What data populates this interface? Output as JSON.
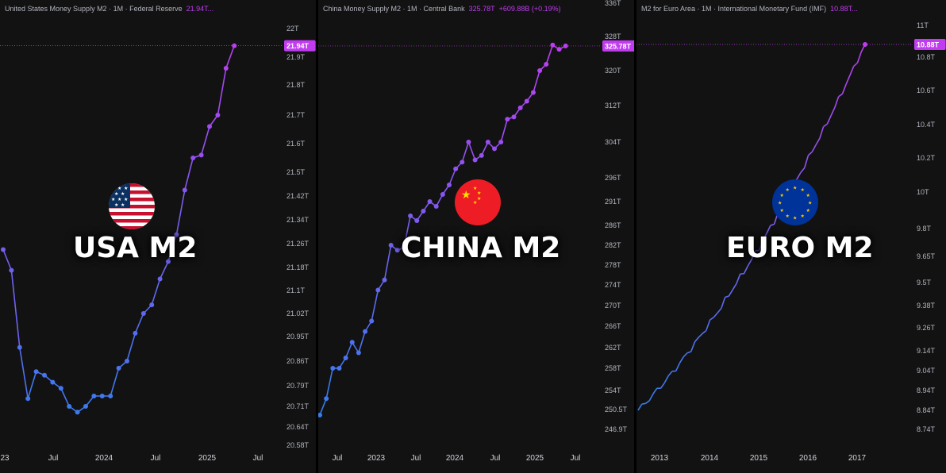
{
  "chart_data": [
    {
      "type": "line",
      "header_title": "United States Money Supply M2 · 1M · Federal Reserve",
      "header_value": "21.94T...",
      "overlay_title": "USA M2",
      "last_label": "21.94T",
      "y_ticks": [
        "22T",
        "21.9T",
        "21.8T",
        "21.7T",
        "21.6T",
        "21.5T",
        "21.42T",
        "21.34T",
        "21.26T",
        "21.18T",
        "21.1T",
        "21.02T",
        "20.95T",
        "20.86T",
        "20.79T",
        "20.71T",
        "20.64T",
        "20.58T"
      ],
      "x_ticks": [
        "23",
        "Jul",
        "2024",
        "Jul",
        "2025",
        "Jul"
      ],
      "ylim": [
        20.56,
        22.02
      ],
      "series": [
        {
          "values": [
            21.24,
            21.17,
            20.91,
            20.74,
            20.83,
            20.82,
            20.8,
            20.78,
            20.71,
            20.69,
            20.71,
            20.75,
            20.75,
            20.75,
            20.84,
            20.86,
            20.96,
            21.02,
            21.05,
            21.14,
            21.2,
            21.29,
            21.44,
            21.55,
            21.56,
            21.66,
            21.7,
            21.86,
            21.94
          ],
          "lead_in": 21.24
        }
      ],
      "accent": "#c13cf0"
    },
    {
      "type": "line",
      "header_title": "China Money Supply M2 · 1M · Central Bank",
      "header_value": "325.78T",
      "header_change": "+609.88B (+0.19%)",
      "overlay_title": "CHINA M2",
      "last_label": "325.78T",
      "y_ticks": [
        "336T",
        "328T",
        "320T",
        "312T",
        "304T",
        "296T",
        "291T",
        "286T",
        "282T",
        "278T",
        "274T",
        "270T",
        "266T",
        "262T",
        "258T",
        "254T",
        "250.5T",
        "246.9T"
      ],
      "x_ticks": [
        "Jul",
        "2023",
        "Jul",
        "2024",
        "Jul",
        "2025",
        "Jul"
      ],
      "ylim": [
        244.0,
        338.0
      ],
      "series": [
        {
          "values": [
            249.5,
            252.5,
            258.0,
            258.0,
            260.0,
            263.0,
            261.0,
            265.0,
            267.0,
            273.0,
            275.0,
            282.0,
            281.0,
            281.5,
            288.0,
            287.0,
            289.0,
            291.0,
            290.0,
            292.5,
            294.5,
            298.0,
            299.5,
            304.0,
            300.0,
            301.0,
            304.0,
            302.5,
            304.0,
            309.0,
            309.5,
            311.5,
            313.0,
            315.0,
            320.0,
            321.5,
            326.0,
            325.0,
            325.78
          ]
        }
      ],
      "accent": "#c13cf0"
    },
    {
      "type": "line",
      "header_title": "M2 for Euro Area · 1M · International Monetary Fund (IMF)",
      "header_value": "10.88T...",
      "overlay_title": "EURO M2",
      "last_label": "10.88T",
      "y_ticks": [
        "11T",
        "10.8T",
        "10.6T",
        "10.4T",
        "10.2T",
        "10T",
        "9.8T",
        "9.65T",
        "9.5T",
        "9.38T",
        "9.26T",
        "9.14T",
        "9.04T",
        "8.94T",
        "8.84T",
        "8.74T"
      ],
      "x_ticks": [
        "2013",
        "2014",
        "2015",
        "2016",
        "2017"
      ],
      "x_range": [
        2012.7,
        2017.4
      ],
      "series": [
        {
          "x_start": 2012.7,
          "x_end": 2017.2,
          "start": 8.84,
          "end": 10.88
        }
      ],
      "accent": "#c13cf0"
    }
  ]
}
